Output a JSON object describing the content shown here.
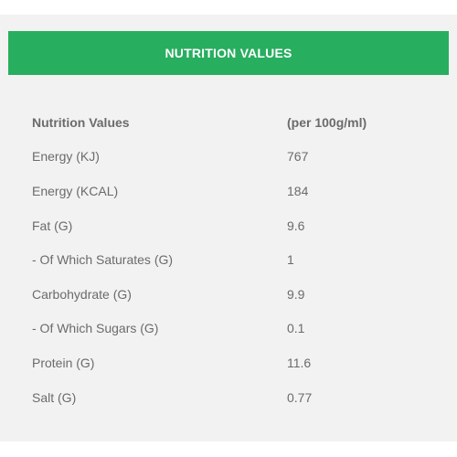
{
  "header": {
    "title": "NUTRITION VALUES"
  },
  "table": {
    "columns": [
      "Nutrition Values",
      "(per 100g/ml)"
    ],
    "rows": [
      {
        "label": "Energy (KJ)",
        "value": "767"
      },
      {
        "label": "Energy (KCAL)",
        "value": "184"
      },
      {
        "label": "Fat (G)",
        "value": "9.6"
      },
      {
        "label": "- Of Which Saturates (G)",
        "value": "1"
      },
      {
        "label": "Carbohydrate (G)",
        "value": "9.9"
      },
      {
        "label": "- Of Which Sugars (G)",
        "value": "0.1"
      },
      {
        "label": "Protein (G)",
        "value": "11.6"
      },
      {
        "label": "Salt (G)",
        "value": "0.77"
      }
    ]
  },
  "colors": {
    "header_bg": "#27ae5f",
    "panel_bg": "#f2f2f2",
    "text": "#6b6b6b"
  }
}
